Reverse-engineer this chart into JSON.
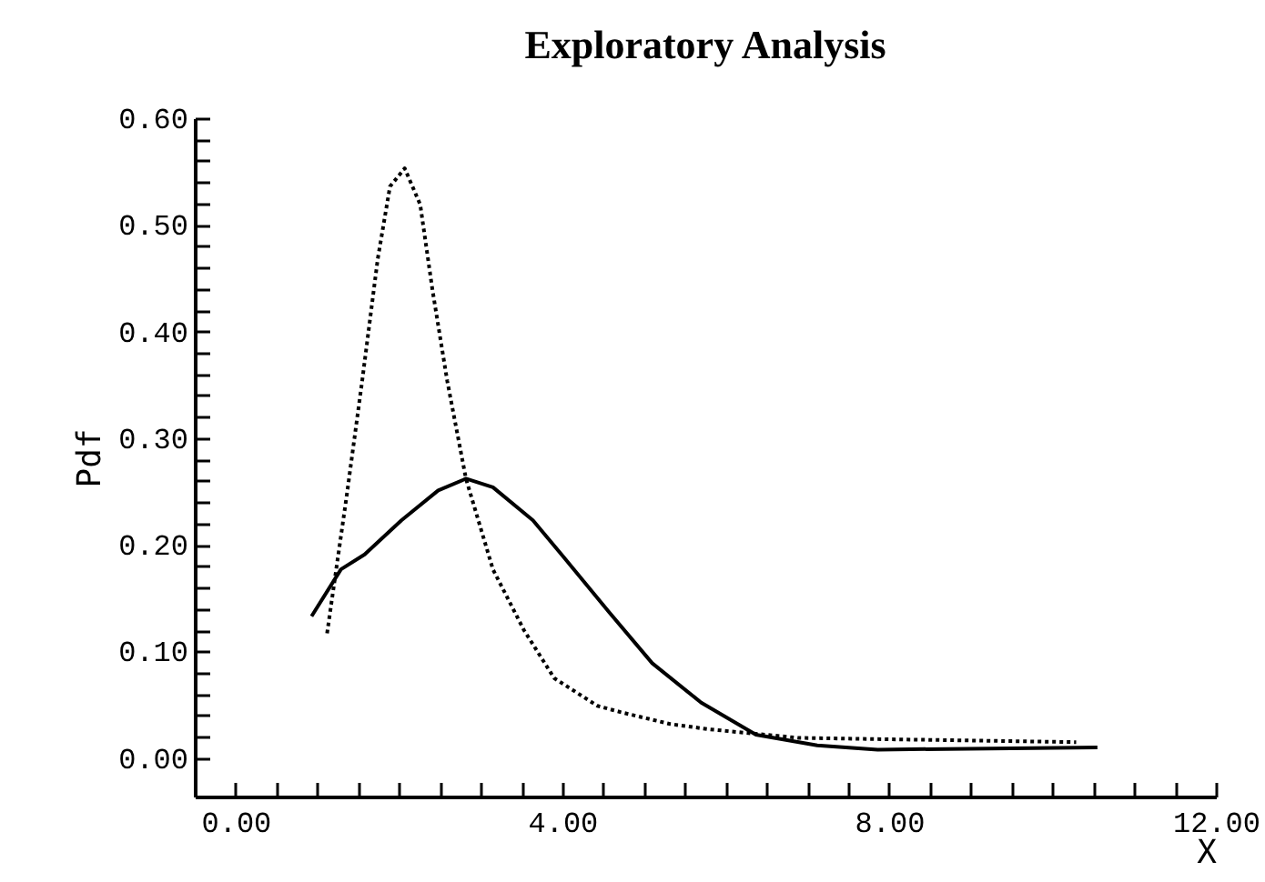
{
  "chart_data": {
    "type": "line",
    "title": "Exploratory Analysis",
    "xlabel": "X",
    "ylabel": "Pdf",
    "xlim": [
      -0.5,
      12
    ],
    "ylim": [
      -0.036,
      0.6
    ],
    "xticks": [
      {
        "value": 0,
        "label": "0.00"
      },
      {
        "value": 0.5,
        "label": null
      },
      {
        "value": 1,
        "label": null
      },
      {
        "value": 1.5,
        "label": null
      },
      {
        "value": 2,
        "label": null
      },
      {
        "value": 2.5,
        "label": null
      },
      {
        "value": 3,
        "label": null
      },
      {
        "value": 3.5,
        "label": null
      },
      {
        "value": 4,
        "label": "4.00"
      },
      {
        "value": 4.5,
        "label": null
      },
      {
        "value": 5,
        "label": null
      },
      {
        "value": 5.5,
        "label": null
      },
      {
        "value": 6,
        "label": null
      },
      {
        "value": 6.5,
        "label": null
      },
      {
        "value": 7,
        "label": null
      },
      {
        "value": 7.5,
        "label": null
      },
      {
        "value": 8,
        "label": "8.00"
      },
      {
        "value": 8.5,
        "label": null
      },
      {
        "value": 9,
        "label": null
      },
      {
        "value": 9.5,
        "label": null
      },
      {
        "value": 10,
        "label": null
      },
      {
        "value": 10.5,
        "label": null
      },
      {
        "value": 11,
        "label": null
      },
      {
        "value": 11.5,
        "label": null
      },
      {
        "value": 12,
        "label": "12.00"
      }
    ],
    "yticks": [
      {
        "value": 0,
        "label": "0.00"
      },
      {
        "value": 0.02,
        "label": null
      },
      {
        "value": 0.04,
        "label": null
      },
      {
        "value": 0.06,
        "label": null
      },
      {
        "value": 0.08,
        "label": null
      },
      {
        "value": 0.1,
        "label": "0.10"
      },
      {
        "value": 0.12,
        "label": null
      },
      {
        "value": 0.14,
        "label": null
      },
      {
        "value": 0.16,
        "label": null
      },
      {
        "value": 0.18,
        "label": null
      },
      {
        "value": 0.2,
        "label": "0.20"
      },
      {
        "value": 0.22,
        "label": null
      },
      {
        "value": 0.24,
        "label": null
      },
      {
        "value": 0.26,
        "label": null
      },
      {
        "value": 0.28,
        "label": null
      },
      {
        "value": 0.3,
        "label": "0.30"
      },
      {
        "value": 0.32,
        "label": null
      },
      {
        "value": 0.34,
        "label": null
      },
      {
        "value": 0.36,
        "label": null
      },
      {
        "value": 0.38,
        "label": null
      },
      {
        "value": 0.4,
        "label": "0.40"
      },
      {
        "value": 0.42,
        "label": null
      },
      {
        "value": 0.44,
        "label": null
      },
      {
        "value": 0.46,
        "label": null
      },
      {
        "value": 0.48,
        "label": null
      },
      {
        "value": 0.5,
        "label": "0.50"
      },
      {
        "value": 0.52,
        "label": null
      },
      {
        "value": 0.54,
        "label": null
      },
      {
        "value": 0.56,
        "label": null
      },
      {
        "value": 0.58,
        "label": null
      },
      {
        "value": 0.6,
        "label": "0.60"
      }
    ],
    "series": [
      {
        "color": "#000000",
        "line_style": "solid",
        "x": [
          0.93,
          1.29,
          1.58,
          2.03,
          2.48,
          2.82,
          3.15,
          3.64,
          4.01,
          4.57,
          5.1,
          5.7,
          6.37,
          7.12,
          7.86,
          10.55
        ],
        "values": [
          0.133,
          0.177,
          0.191,
          0.223,
          0.251,
          0.262,
          0.254,
          0.223,
          0.189,
          0.137,
          0.089,
          0.052,
          0.022,
          0.012,
          0.008,
          0.01
        ]
      },
      {
        "color": "#000000",
        "line_style": "dotted",
        "x": [
          1.12,
          1.36,
          1.55,
          1.74,
          1.89,
          2.07,
          2.26,
          2.41,
          2.59,
          2.82,
          3.15,
          3.53,
          3.9,
          4.43,
          4.72,
          5.32,
          5.8,
          6.89,
          10.29
        ],
        "values": [
          0.117,
          0.246,
          0.354,
          0.468,
          0.536,
          0.553,
          0.519,
          0.439,
          0.354,
          0.262,
          0.177,
          0.12,
          0.075,
          0.049,
          0.043,
          0.032,
          0.027,
          0.019,
          0.015
        ]
      }
    ]
  }
}
